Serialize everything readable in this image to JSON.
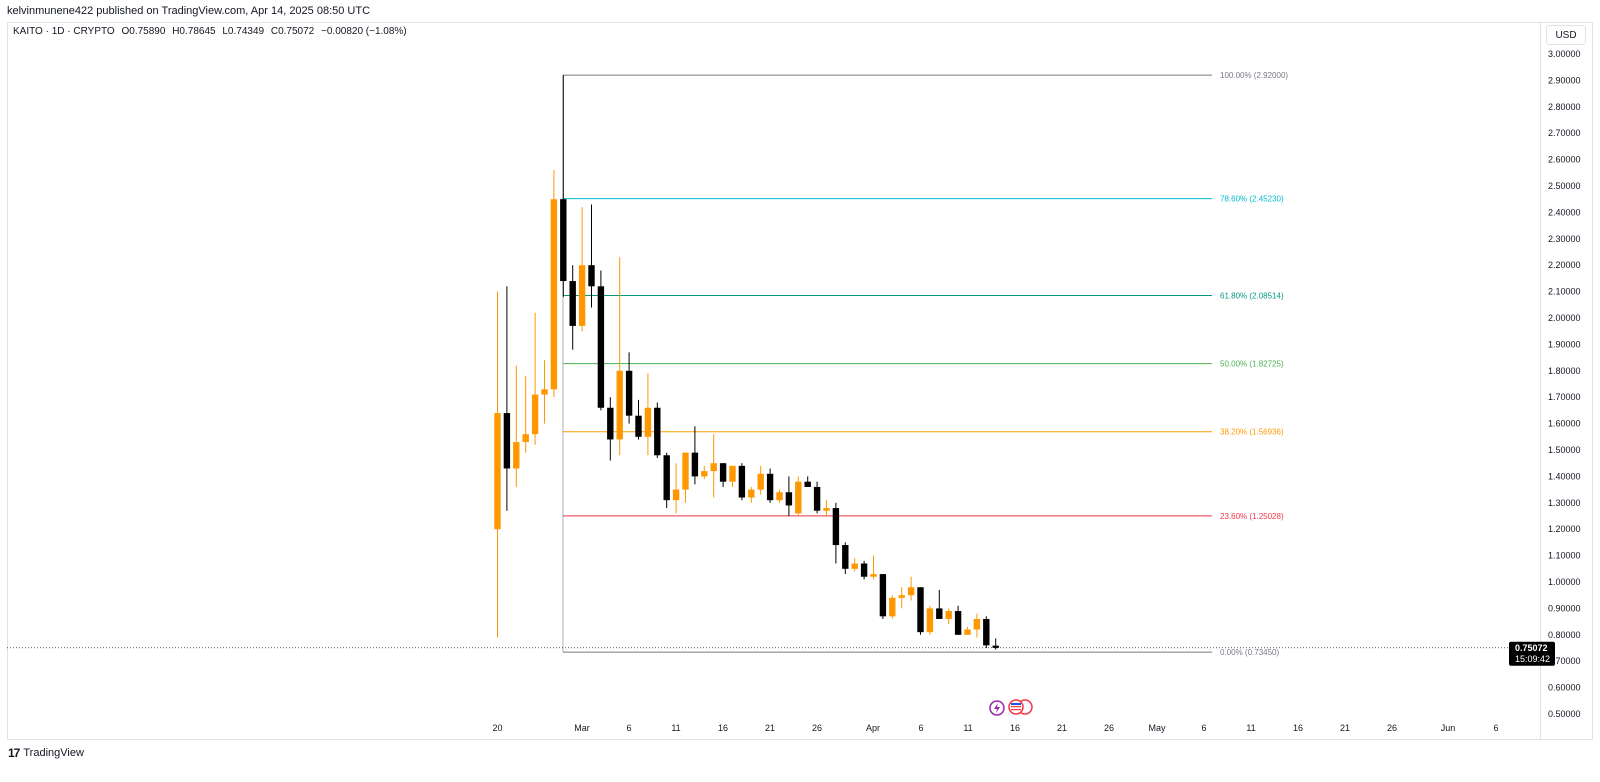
{
  "header": {
    "published": "kelvinmunene422 published on TradingView.com, Apr 14, 2025 08:50 UTC"
  },
  "legend": {
    "symbol": "KAITO · 1D · CRYPTO",
    "open": "O0.75890",
    "high": "H0.78645",
    "low": "L0.74349",
    "close": "C0.75072",
    "change": "−0.00820 (−1.08%)"
  },
  "currency": "USD",
  "footer": {
    "brand": "TradingView"
  },
  "colors": {
    "up": "#ff9800",
    "down": "#000000",
    "fib_100": "#787b86",
    "fib_786": "#00bcd4",
    "fib_618": "#089981",
    "fib_50": "#4caf50",
    "fib_382": "#ff9800",
    "fib_236": "#f23645",
    "fib_0": "#787b86"
  },
  "chart_data": {
    "type": "candlestick",
    "ylim": [
      0.5,
      3.0
    ],
    "y_ticks": [
      "0.50000",
      "0.60000",
      "0.70000",
      "0.80000",
      "0.90000",
      "1.00000",
      "1.10000",
      "1.20000",
      "1.30000",
      "1.40000",
      "1.50000",
      "1.60000",
      "1.70000",
      "1.80000",
      "1.90000",
      "2.00000",
      "2.10000",
      "2.20000",
      "2.30000",
      "2.40000",
      "2.50000",
      "2.60000",
      "2.70000",
      "2.80000",
      "2.90000",
      "3.00000"
    ],
    "x_ticks": [
      "20",
      "Mar",
      "6",
      "11",
      "16",
      "21",
      "26",
      "Apr",
      "6",
      "11",
      "16",
      "21",
      "26",
      "May",
      "6",
      "11",
      "16",
      "21",
      "26",
      "Jun",
      "6"
    ],
    "last_price": "0.75072",
    "countdown": "15:09:42",
    "fib_levels": [
      {
        "label": "100.00% (2.92000)",
        "value": 2.92,
        "color_key": "fib_100"
      },
      {
        "label": "78.60% (2.45230)",
        "value": 2.4523,
        "color_key": "fib_786"
      },
      {
        "label": "61.80% (2.08514)",
        "value": 2.08514,
        "color_key": "fib_618"
      },
      {
        "label": "50.00% (1.82725)",
        "value": 1.82725,
        "color_key": "fib_50"
      },
      {
        "label": "38.20% (1.56936)",
        "value": 1.56936,
        "color_key": "fib_382"
      },
      {
        "label": "23.60% (1.25028)",
        "value": 1.25028,
        "color_key": "fib_236"
      },
      {
        "label": "0.00% (0.73450)",
        "value": 0.7345,
        "color_key": "fib_0"
      }
    ],
    "candles": [
      {
        "date": "2025-02-20",
        "o": 1.2,
        "h": 2.1,
        "l": 0.79,
        "c": 1.64
      },
      {
        "date": "2025-02-21",
        "o": 1.64,
        "h": 2.12,
        "l": 1.27,
        "c": 1.43
      },
      {
        "date": "2025-02-22",
        "o": 1.43,
        "h": 1.82,
        "l": 1.36,
        "c": 1.53
      },
      {
        "date": "2025-02-23",
        "o": 1.53,
        "h": 1.78,
        "l": 1.49,
        "c": 1.56
      },
      {
        "date": "2025-02-24",
        "o": 1.56,
        "h": 2.02,
        "l": 1.52,
        "c": 1.71
      },
      {
        "date": "2025-02-25",
        "o": 1.71,
        "h": 1.84,
        "l": 1.6,
        "c": 1.73
      },
      {
        "date": "2025-02-26",
        "o": 1.73,
        "h": 2.56,
        "l": 1.7,
        "c": 2.45
      },
      {
        "date": "2025-02-27",
        "o": 2.45,
        "h": 2.92,
        "l": 2.08,
        "c": 2.14
      },
      {
        "date": "2025-02-28",
        "o": 2.14,
        "h": 2.2,
        "l": 1.88,
        "c": 1.97
      },
      {
        "date": "2025-03-01",
        "o": 1.97,
        "h": 2.42,
        "l": 1.95,
        "c": 2.2
      },
      {
        "date": "2025-03-02",
        "o": 2.2,
        "h": 2.43,
        "l": 2.04,
        "c": 2.12
      },
      {
        "date": "2025-03-03",
        "o": 2.12,
        "h": 2.18,
        "l": 1.65,
        "c": 1.66
      },
      {
        "date": "2025-03-04",
        "o": 1.66,
        "h": 1.7,
        "l": 1.46,
        "c": 1.54
      },
      {
        "date": "2025-03-05",
        "o": 1.54,
        "h": 2.23,
        "l": 1.48,
        "c": 1.8
      },
      {
        "date": "2025-03-06",
        "o": 1.8,
        "h": 1.87,
        "l": 1.6,
        "c": 1.63
      },
      {
        "date": "2025-03-07",
        "o": 1.63,
        "h": 1.69,
        "l": 1.54,
        "c": 1.55
      },
      {
        "date": "2025-03-08",
        "o": 1.55,
        "h": 1.79,
        "l": 1.48,
        "c": 1.66
      },
      {
        "date": "2025-03-09",
        "o": 1.66,
        "h": 1.68,
        "l": 1.47,
        "c": 1.48
      },
      {
        "date": "2025-03-10",
        "o": 1.48,
        "h": 1.49,
        "l": 1.28,
        "c": 1.31
      },
      {
        "date": "2025-03-11",
        "o": 1.31,
        "h": 1.45,
        "l": 1.26,
        "c": 1.35
      },
      {
        "date": "2025-03-12",
        "o": 1.35,
        "h": 1.49,
        "l": 1.3,
        "c": 1.49
      },
      {
        "date": "2025-03-13",
        "o": 1.49,
        "h": 1.59,
        "l": 1.37,
        "c": 1.4
      },
      {
        "date": "2025-03-14",
        "o": 1.4,
        "h": 1.44,
        "l": 1.39,
        "c": 1.42
      },
      {
        "date": "2025-03-15",
        "o": 1.42,
        "h": 1.56,
        "l": 1.32,
        "c": 1.45
      },
      {
        "date": "2025-03-16",
        "o": 1.45,
        "h": 1.45,
        "l": 1.36,
        "c": 1.38
      },
      {
        "date": "2025-03-17",
        "o": 1.38,
        "h": 1.44,
        "l": 1.36,
        "c": 1.44
      },
      {
        "date": "2025-03-18",
        "o": 1.44,
        "h": 1.45,
        "l": 1.31,
        "c": 1.32
      },
      {
        "date": "2025-03-19",
        "o": 1.32,
        "h": 1.36,
        "l": 1.3,
        "c": 1.35
      },
      {
        "date": "2025-03-20",
        "o": 1.35,
        "h": 1.44,
        "l": 1.33,
        "c": 1.41
      },
      {
        "date": "2025-03-21",
        "o": 1.41,
        "h": 1.43,
        "l": 1.3,
        "c": 1.31
      },
      {
        "date": "2025-03-22",
        "o": 1.31,
        "h": 1.35,
        "l": 1.3,
        "c": 1.34
      },
      {
        "date": "2025-03-23",
        "o": 1.34,
        "h": 1.4,
        "l": 1.25,
        "c": 1.29
      },
      {
        "date": "2025-03-24",
        "o": 1.26,
        "h": 1.4,
        "l": 1.25,
        "c": 1.38
      },
      {
        "date": "2025-03-25",
        "o": 1.38,
        "h": 1.4,
        "l": 1.36,
        "c": 1.36
      },
      {
        "date": "2025-03-26",
        "o": 1.36,
        "h": 1.38,
        "l": 1.26,
        "c": 1.27
      },
      {
        "date": "2025-03-27",
        "o": 1.27,
        "h": 1.31,
        "l": 1.25,
        "c": 1.28
      },
      {
        "date": "2025-03-28",
        "o": 1.28,
        "h": 1.3,
        "l": 1.07,
        "c": 1.14
      },
      {
        "date": "2025-03-29",
        "o": 1.14,
        "h": 1.15,
        "l": 1.03,
        "c": 1.05
      },
      {
        "date": "2025-03-30",
        "o": 1.05,
        "h": 1.09,
        "l": 1.04,
        "c": 1.07
      },
      {
        "date": "2025-03-31",
        "o": 1.07,
        "h": 1.08,
        "l": 1.01,
        "c": 1.02
      },
      {
        "date": "2025-04-01",
        "o": 1.02,
        "h": 1.1,
        "l": 1.01,
        "c": 1.03
      },
      {
        "date": "2025-04-02",
        "o": 1.03,
        "h": 1.03,
        "l": 0.86,
        "c": 0.87
      },
      {
        "date": "2025-04-03",
        "o": 0.87,
        "h": 0.95,
        "l": 0.86,
        "c": 0.94
      },
      {
        "date": "2025-04-04",
        "o": 0.94,
        "h": 0.98,
        "l": 0.9,
        "c": 0.95
      },
      {
        "date": "2025-04-05",
        "o": 0.95,
        "h": 1.02,
        "l": 0.93,
        "c": 0.98
      },
      {
        "date": "2025-04-06",
        "o": 0.98,
        "h": 0.98,
        "l": 0.8,
        "c": 0.81
      },
      {
        "date": "2025-04-07",
        "o": 0.81,
        "h": 0.91,
        "l": 0.8,
        "c": 0.9
      },
      {
        "date": "2025-04-08",
        "o": 0.9,
        "h": 0.97,
        "l": 0.86,
        "c": 0.86
      },
      {
        "date": "2025-04-09",
        "o": 0.86,
        "h": 0.9,
        "l": 0.84,
        "c": 0.89
      },
      {
        "date": "2025-04-10",
        "o": 0.89,
        "h": 0.91,
        "l": 0.8,
        "c": 0.8
      },
      {
        "date": "2025-04-11",
        "o": 0.8,
        "h": 0.83,
        "l": 0.8,
        "c": 0.82
      },
      {
        "date": "2025-04-12",
        "o": 0.82,
        "h": 0.88,
        "l": 0.79,
        "c": 0.86
      },
      {
        "date": "2025-04-13",
        "o": 0.86,
        "h": 0.87,
        "l": 0.75,
        "c": 0.76
      },
      {
        "date": "2025-04-14",
        "o": 0.7589,
        "h": 0.78645,
        "l": 0.74349,
        "c": 0.75072
      }
    ]
  }
}
